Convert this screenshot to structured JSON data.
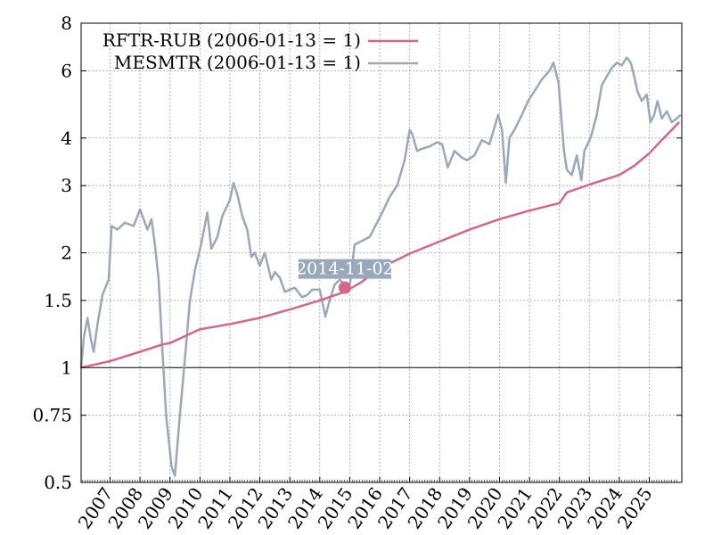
{
  "chart_data": {
    "type": "line",
    "title": "",
    "xlabel": "",
    "ylabel": "",
    "y_scale": "log",
    "ylim": [
      0.5,
      8
    ],
    "xlim": [
      "2006-01-13",
      "2026-02-01"
    ],
    "y_ticks": [
      {
        "value": 0.5,
        "label": "0.5"
      },
      {
        "value": 0.75,
        "label": "0.75"
      },
      {
        "value": 1,
        "label": "1"
      },
      {
        "value": 1.5,
        "label": "1.5"
      },
      {
        "value": 2,
        "label": "2"
      },
      {
        "value": 3,
        "label": "3"
      },
      {
        "value": 4,
        "label": "4"
      },
      {
        "value": 6,
        "label": "6"
      },
      {
        "value": 8,
        "label": "8"
      }
    ],
    "x_ticks": [
      "2007",
      "2008",
      "2009",
      "2010",
      "2011",
      "2012",
      "2013",
      "2014",
      "2015",
      "2016",
      "2017",
      "2018",
      "2019",
      "2020",
      "2021",
      "2022",
      "2023",
      "2024",
      "2025"
    ],
    "reference_line": 1,
    "grid": true,
    "legend_position": "top-left",
    "series": [
      {
        "name": "RFTR-RUB (2006-01-13 = 1)",
        "color": "#d4668c",
        "x": [
          "2006-01-13",
          "2007-01-01",
          "2008-01-01",
          "2008-10-01",
          "2009-01-01",
          "2009-06-01",
          "2010-01-01",
          "2011-01-01",
          "2012-01-01",
          "2013-01-01",
          "2014-01-01",
          "2014-11-02",
          "2015-06-01",
          "2016-01-01",
          "2017-01-01",
          "2018-01-01",
          "2019-01-01",
          "2020-01-01",
          "2021-01-01",
          "2022-01-01",
          "2022-04-01",
          "2023-01-01",
          "2024-01-01",
          "2024-07-01",
          "2025-01-01",
          "2025-06-01",
          "2026-01-01"
        ],
        "values": [
          1.0,
          1.04,
          1.1,
          1.15,
          1.16,
          1.2,
          1.26,
          1.3,
          1.35,
          1.42,
          1.5,
          1.58,
          1.68,
          1.82,
          1.99,
          2.14,
          2.3,
          2.45,
          2.58,
          2.7,
          2.88,
          3.02,
          3.2,
          3.38,
          3.65,
          3.95,
          4.4
        ]
      },
      {
        "name": "MESMTR (2006-01-13 = 1)",
        "color": "#9aa8bb",
        "x": [
          "2006-01-13",
          "2006-02-15",
          "2006-04-01",
          "2006-05-15",
          "2006-06-15",
          "2006-08-01",
          "2006-10-01",
          "2006-12-15",
          "2007-01-20",
          "2007-04-01",
          "2007-07-01",
          "2007-10-15",
          "2008-01-01",
          "2008-04-01",
          "2008-05-20",
          "2008-07-01",
          "2008-08-15",
          "2008-10-01",
          "2008-11-15",
          "2009-01-20",
          "2009-03-01",
          "2009-05-01",
          "2009-07-01",
          "2009-09-01",
          "2009-11-01",
          "2010-01-15",
          "2010-04-01",
          "2010-05-20",
          "2010-08-01",
          "2010-10-01",
          "2011-01-01",
          "2011-02-15",
          "2011-04-01",
          "2011-06-01",
          "2011-08-01",
          "2011-09-20",
          "2011-11-01",
          "2012-01-01",
          "2012-03-01",
          "2012-05-20",
          "2012-07-01",
          "2012-09-01",
          "2012-11-01",
          "2013-01-01",
          "2013-03-01",
          "2013-06-01",
          "2013-08-01",
          "2013-10-01",
          "2014-01-01",
          "2014-03-10",
          "2014-05-01",
          "2014-07-01",
          "2014-09-01",
          "2014-11-02",
          "2014-12-16",
          "2015-01-15",
          "2015-03-01",
          "2015-06-01",
          "2015-09-01",
          "2015-12-01",
          "2016-02-01",
          "2016-05-01",
          "2016-08-01",
          "2016-11-01",
          "2017-01-01",
          "2017-02-01",
          "2017-04-01",
          "2017-06-01",
          "2017-09-01",
          "2017-12-01",
          "2018-02-01",
          "2018-04-10",
          "2018-07-01",
          "2018-10-01",
          "2018-12-01",
          "2019-03-01",
          "2019-06-01",
          "2019-09-01",
          "2019-12-15",
          "2020-02-01",
          "2020-03-18",
          "2020-05-01",
          "2020-07-01",
          "2020-10-01",
          "2020-12-15",
          "2021-03-01",
          "2021-06-01",
          "2021-09-01",
          "2021-10-20",
          "2021-12-20",
          "2022-02-25",
          "2022-04-01",
          "2022-06-01",
          "2022-08-01",
          "2022-09-25",
          "2022-11-01",
          "2023-01-15",
          "2023-04-01",
          "2023-06-01",
          "2023-08-01",
          "2023-10-01",
          "2023-12-01",
          "2024-02-01",
          "2024-04-01",
          "2024-05-20",
          "2024-07-01",
          "2024-08-10",
          "2024-10-01",
          "2024-12-01",
          "2025-01-15",
          "2025-03-01",
          "2025-04-10",
          "2025-06-01",
          "2025-08-01",
          "2025-10-01",
          "2025-12-01",
          "2026-01-20"
        ],
        "values": [
          1.0,
          1.2,
          1.35,
          1.18,
          1.1,
          1.3,
          1.55,
          1.7,
          2.35,
          2.3,
          2.4,
          2.35,
          2.6,
          2.3,
          2.45,
          2.1,
          1.7,
          1.1,
          0.75,
          0.55,
          0.52,
          0.75,
          1.05,
          1.5,
          1.8,
          2.1,
          2.55,
          2.05,
          2.2,
          2.5,
          2.75,
          3.05,
          2.85,
          2.5,
          2.3,
          1.95,
          2.0,
          1.85,
          2.0,
          1.7,
          1.78,
          1.72,
          1.58,
          1.6,
          1.62,
          1.53,
          1.55,
          1.6,
          1.6,
          1.36,
          1.5,
          1.65,
          1.7,
          1.65,
          1.58,
          1.72,
          2.1,
          2.15,
          2.2,
          2.4,
          2.55,
          2.8,
          3.0,
          3.5,
          4.2,
          4.1,
          3.7,
          3.75,
          3.8,
          3.9,
          3.85,
          3.35,
          3.7,
          3.55,
          3.5,
          3.6,
          3.95,
          3.85,
          4.6,
          4.2,
          3.05,
          4.0,
          4.2,
          4.6,
          5.0,
          5.3,
          5.7,
          6.0,
          6.3,
          5.6,
          3.7,
          3.3,
          3.2,
          3.6,
          3.1,
          3.7,
          4.0,
          4.6,
          5.5,
          5.8,
          6.1,
          6.3,
          6.2,
          6.5,
          6.3,
          5.8,
          5.3,
          5.0,
          5.2,
          4.4,
          4.6,
          5.0,
          4.5,
          4.7,
          4.4,
          4.5,
          4.6
        ]
      }
    ],
    "annotation": {
      "x": "2014-11-02",
      "y": 1.62,
      "label": "2014-11-02"
    }
  }
}
